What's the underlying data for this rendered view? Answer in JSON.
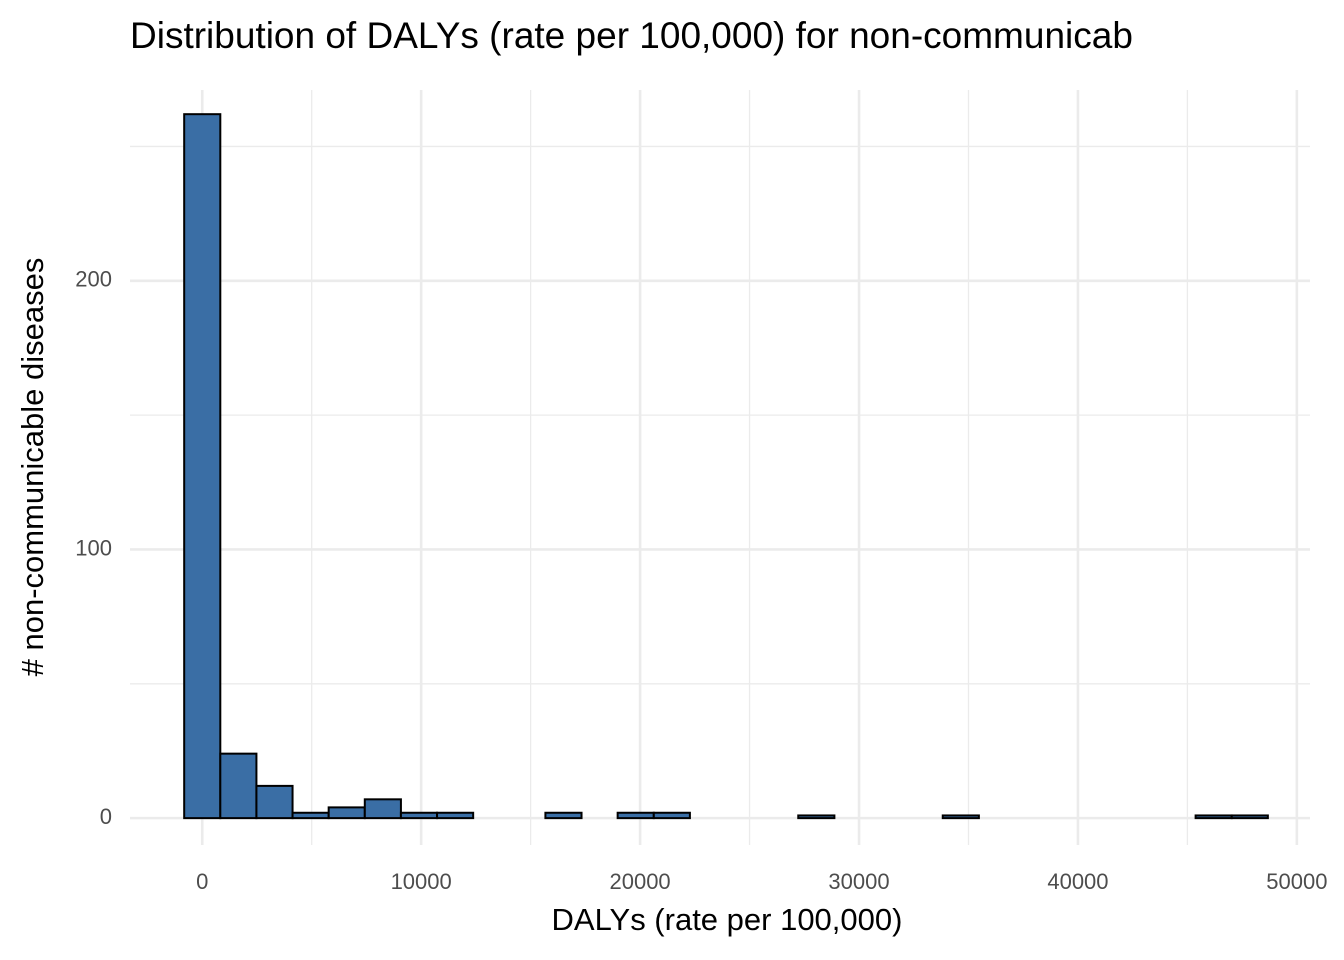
{
  "chart_data": {
    "type": "histogram",
    "title": "Distribution of DALYs (rate per 100,000) for non-communicab",
    "xlabel": "DALYs (rate per 100,000)",
    "ylabel": "# non-communicable diseases",
    "bins": [
      -825,
      825,
      2475,
      4125,
      5775,
      7425,
      9075,
      10725,
      12375,
      14025,
      15675,
      17325,
      18975,
      20625,
      22275,
      23925,
      25575,
      27225,
      28875,
      30525,
      32175,
      33825,
      35475,
      37125,
      38775,
      40425,
      42075,
      43725,
      45375,
      47025,
      48675
    ],
    "values": [
      262,
      24,
      12,
      2,
      4,
      7,
      2,
      2,
      0,
      0,
      2,
      0,
      2,
      2,
      0,
      0,
      0,
      1,
      0,
      0,
      0,
      1,
      0,
      0,
      0,
      0,
      0,
      0,
      1,
      1
    ],
    "color": "#3a6ea5",
    "edgecolor": "#000000",
    "xlim": [
      -3300,
      50600
    ],
    "ylim": [
      -10,
      271
    ],
    "xticks": [
      0,
      10000,
      20000,
      30000,
      40000,
      50000
    ],
    "yticks": [
      0,
      100,
      200
    ],
    "x_minor_ticks": [
      5000,
      15000,
      25000,
      35000,
      45000
    ],
    "y_minor_ticks": [
      50,
      150,
      250
    ],
    "grid": true
  }
}
